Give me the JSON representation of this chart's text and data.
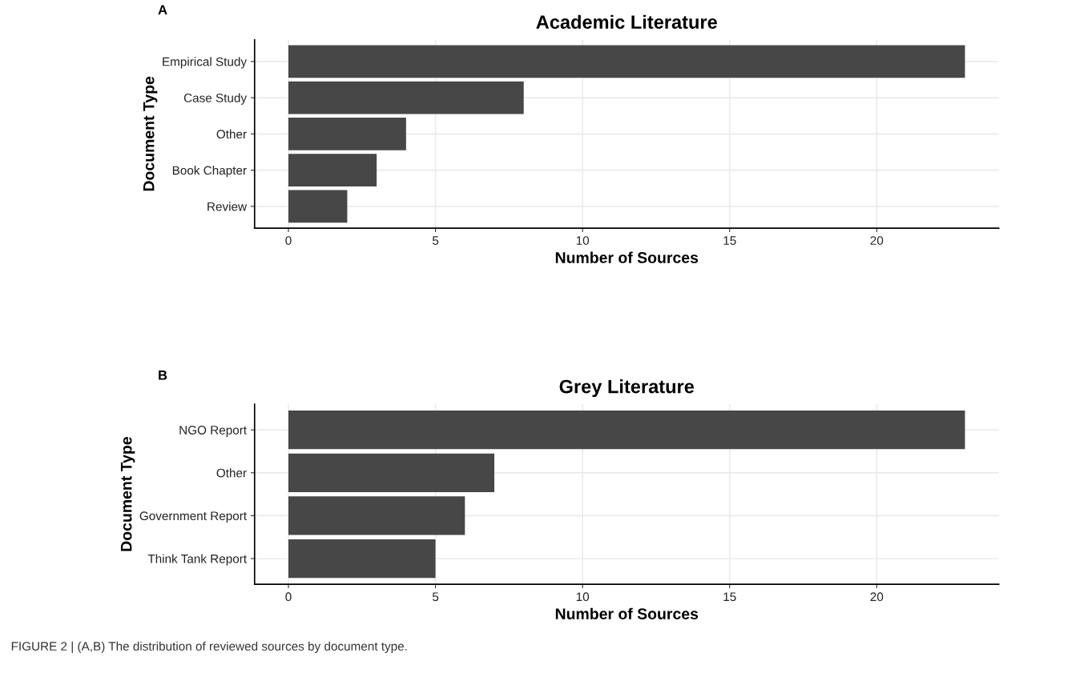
{
  "chart_data": [
    {
      "type": "bar",
      "orientation": "horizontal",
      "title": "Academic Literature",
      "xlabel": "Number of Sources",
      "ylabel": "Document Type",
      "categories": [
        "Empirical Study",
        "Case Study",
        "Other",
        "Book Chapter",
        "Review"
      ],
      "values": [
        23,
        8,
        4,
        3,
        2
      ],
      "color": "#474747",
      "xlim": [
        -1.15,
        24.15
      ],
      "xticks": [
        0,
        5,
        10,
        15,
        20
      ],
      "grid": true,
      "annotations": [
        "A"
      ]
    },
    {
      "type": "bar",
      "orientation": "horizontal",
      "title": "Grey Literature",
      "xlabel": "Number of Sources",
      "ylabel": "Document Type",
      "categories": [
        "NGO Report",
        "Other",
        "Government Report",
        "Think Tank Report"
      ],
      "values": [
        23,
        7,
        6,
        5
      ],
      "color": "#474747",
      "xlim": [
        -1.15,
        24.15
      ],
      "xticks": [
        0,
        5,
        10,
        15,
        20
      ],
      "grid": true,
      "annotations": [
        "B",
        "FIGURE 2 | (A,B) The distribution of reviewed sources by document type."
      ]
    }
  ]
}
